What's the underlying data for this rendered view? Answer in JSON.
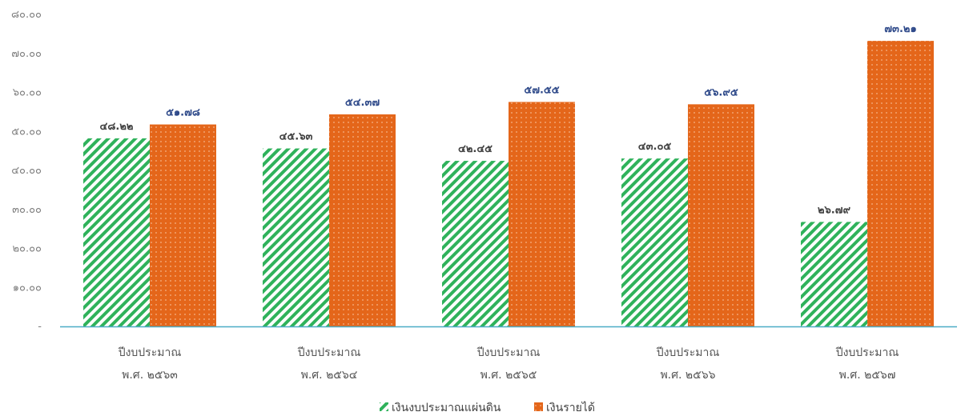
{
  "chart_data": {
    "type": "bar",
    "categories": [
      [
        "ปีงบประมาณ",
        "พ.ศ. ๒๕๖๓"
      ],
      [
        "ปีงบประมาณ",
        "พ.ศ. ๒๕๖๔"
      ],
      [
        "ปีงบประมาณ",
        "พ.ศ. ๒๕๖๕"
      ],
      [
        "ปีงบประมาณ",
        "พ.ศ. ๒๕๖๖"
      ],
      [
        "ปีงบประมาณ",
        "พ.ศ. ๒๕๖๗"
      ]
    ],
    "series": [
      {
        "name": "เงินงบประมาณแผ่นดิน",
        "values": [
          48.22,
          45.63,
          42.45,
          43.05,
          26.79
        ],
        "labels": [
          "๔๘.๒๒",
          "๔๕.๖๓",
          "๔๒.๔๕",
          "๔๓.๐๕",
          "๒๖.๗๙"
        ],
        "color": "#2fb25b",
        "pattern": "diagonal-stripes"
      },
      {
        "name": "เงินรายได้",
        "values": [
          51.78,
          54.37,
          57.55,
          56.95,
          73.21
        ],
        "labels": [
          "๕๑.๗๘",
          "๕๔.๓๗",
          "๕๗.๕๕",
          "๕๖.๙๕",
          "๗๓.๒๑"
        ],
        "color": "#e4661a",
        "pattern": "dots"
      }
    ],
    "ylim": [
      0,
      80
    ],
    "yticks": [
      0,
      10,
      20,
      30,
      40,
      50,
      60,
      70,
      80
    ],
    "ytick_labels": [
      "-",
      "๑๐.๐๐",
      "๒๐.๐๐",
      "๓๐.๐๐",
      "๔๐.๐๐",
      "๕๐.๐๐",
      "๖๐.๐๐",
      "๗๐.๐๐",
      "๘๐.๐๐"
    ],
    "xlabel": "",
    "ylabel": "",
    "title": "",
    "grid": false,
    "legend_position": "bottom-center",
    "axis_color": "#4bacc6"
  }
}
